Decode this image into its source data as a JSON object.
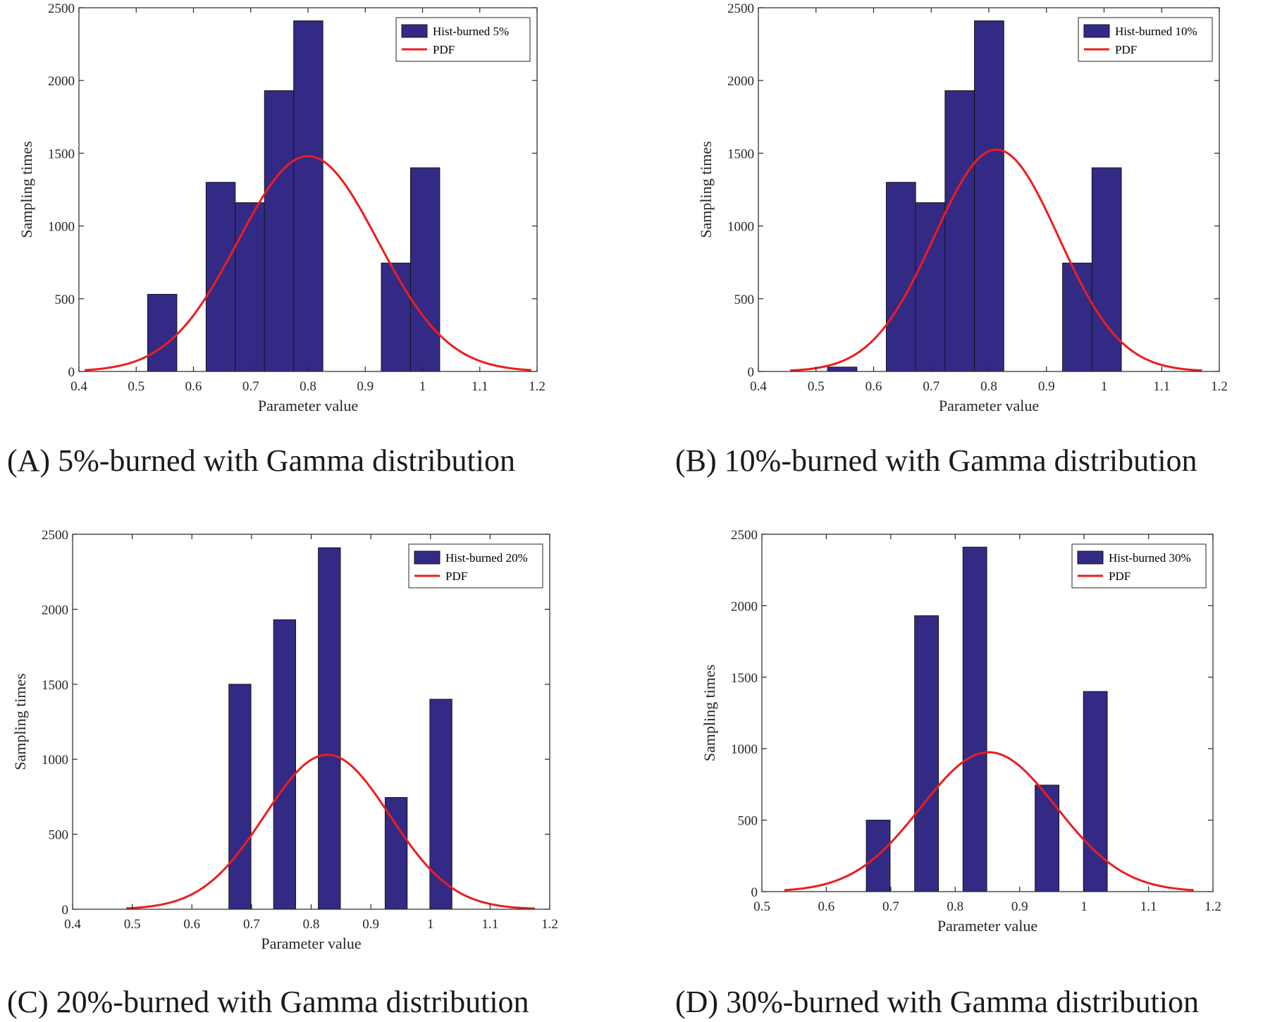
{
  "colors": {
    "bar_fill": "#332a86",
    "bar_edge": "#141414",
    "pdf_line": "#ee1c1c"
  },
  "ylabel": "Sampling times",
  "xlabel": "Parameter value",
  "chart_data": [
    {
      "type": "bar",
      "caption": "(A)  5%-burned with Gamma distribution",
      "xlabel": "Parameter value",
      "ylabel": "Sampling times",
      "xlim": [
        0.4,
        1.2
      ],
      "ylim": [
        0,
        2500
      ],
      "xticks": [
        "0.4",
        "0.5",
        "0.6",
        "0.7",
        "0.8",
        "0.9",
        "1",
        "1.1",
        "1.2"
      ],
      "yticks": [
        "0",
        "500",
        "1000",
        "1500",
        "2000",
        "2500"
      ],
      "legend_position": "top-right",
      "bins": [
        {
          "x0": 0.52,
          "x1": 0.571,
          "count": 530
        },
        {
          "x0": 0.622,
          "x1": 0.673,
          "count": 1300
        },
        {
          "x0": 0.673,
          "x1": 0.724,
          "count": 1160
        },
        {
          "x0": 0.724,
          "x1": 0.775,
          "count": 1930
        },
        {
          "x0": 0.775,
          "x1": 0.826,
          "count": 2410
        },
        {
          "x0": 0.928,
          "x1": 0.979,
          "count": 745
        },
        {
          "x0": 0.979,
          "x1": 1.03,
          "count": 1400
        }
      ],
      "series": [
        {
          "name": "Hist-burned 5%",
          "type": "histogram"
        },
        {
          "name": "PDF",
          "type": "line",
          "mean": 0.8,
          "sd": 0.122,
          "peak": 1480,
          "x_range": [
            0.41,
            1.19
          ]
        }
      ]
    },
    {
      "type": "bar",
      "caption": "(B)  10%-burned with Gamma distribution",
      "xlabel": "Parameter value",
      "ylabel": "Sampling times",
      "xlim": [
        0.4,
        1.2
      ],
      "ylim": [
        0,
        2500
      ],
      "xticks": [
        "0.4",
        "0.5",
        "0.6",
        "0.7",
        "0.8",
        "0.9",
        "1",
        "1.1",
        "1.2"
      ],
      "yticks": [
        "0",
        "500",
        "1000",
        "1500",
        "2000",
        "2500"
      ],
      "legend_position": "top-right",
      "bins": [
        {
          "x0": 0.52,
          "x1": 0.571,
          "count": 30
        },
        {
          "x0": 0.622,
          "x1": 0.673,
          "count": 1300
        },
        {
          "x0": 0.673,
          "x1": 0.724,
          "count": 1160
        },
        {
          "x0": 0.724,
          "x1": 0.775,
          "count": 1930
        },
        {
          "x0": 0.775,
          "x1": 0.826,
          "count": 2410
        },
        {
          "x0": 0.928,
          "x1": 0.979,
          "count": 745
        },
        {
          "x0": 0.979,
          "x1": 1.03,
          "count": 1400
        }
      ],
      "series": [
        {
          "name": "Hist-burned 10%",
          "type": "histogram"
        },
        {
          "name": "PDF",
          "type": "line",
          "mean": 0.813,
          "sd": 0.108,
          "peak": 1525,
          "x_range": [
            0.455,
            1.17
          ]
        }
      ]
    },
    {
      "type": "bar",
      "caption": "(C)  20%-burned with Gamma distribution",
      "xlabel": "Parameter value",
      "ylabel": "Sampling times",
      "xlim": [
        0.4,
        1.2
      ],
      "ylim": [
        0,
        2500
      ],
      "xticks": [
        "0.4",
        "0.5",
        "0.6",
        "0.7",
        "0.8",
        "0.9",
        "1",
        "1.1",
        "1.2"
      ],
      "yticks": [
        "0",
        "500",
        "1000",
        "1500",
        "2000",
        "2500"
      ],
      "legend_position": "top-right",
      "bins": [
        {
          "x0": 0.662,
          "x1": 0.699,
          "count": 1500
        },
        {
          "x0": 0.737,
          "x1": 0.774,
          "count": 1930
        },
        {
          "x0": 0.812,
          "x1": 0.849,
          "count": 2410
        },
        {
          "x0": 0.924,
          "x1": 0.961,
          "count": 745
        },
        {
          "x0": 0.999,
          "x1": 1.036,
          "count": 1400
        }
      ],
      "series": [
        {
          "name": "Hist-burned 20%",
          "type": "histogram"
        },
        {
          "name": "PDF",
          "type": "line",
          "mean": 0.827,
          "sd": 0.105,
          "peak": 1030,
          "x_range": [
            0.49,
            1.175
          ]
        }
      ]
    },
    {
      "type": "bar",
      "caption": "(D)  30%-burned with Gamma distribution",
      "xlabel": "Parameter value",
      "ylabel": "Sampling times",
      "xlim": [
        0.5,
        1.2
      ],
      "ylim": [
        0,
        2500
      ],
      "xticks": [
        "0.5",
        "0.6",
        "0.7",
        "0.8",
        "0.9",
        "1",
        "1.1",
        "1.2"
      ],
      "yticks": [
        "0",
        "500",
        "1000",
        "1500",
        "2000",
        "2500"
      ],
      "legend_position": "top-right",
      "bins": [
        {
          "x0": 0.662,
          "x1": 0.699,
          "count": 500
        },
        {
          "x0": 0.737,
          "x1": 0.774,
          "count": 1930
        },
        {
          "x0": 0.812,
          "x1": 0.849,
          "count": 2410
        },
        {
          "x0": 0.924,
          "x1": 0.961,
          "count": 745
        },
        {
          "x0": 0.999,
          "x1": 1.036,
          "count": 1400
        }
      ],
      "series": [
        {
          "name": "Hist-burned 30%",
          "type": "histogram"
        },
        {
          "name": "PDF",
          "type": "line",
          "mean": 0.852,
          "sd": 0.105,
          "peak": 975,
          "x_range": [
            0.535,
            1.17
          ]
        }
      ]
    }
  ]
}
